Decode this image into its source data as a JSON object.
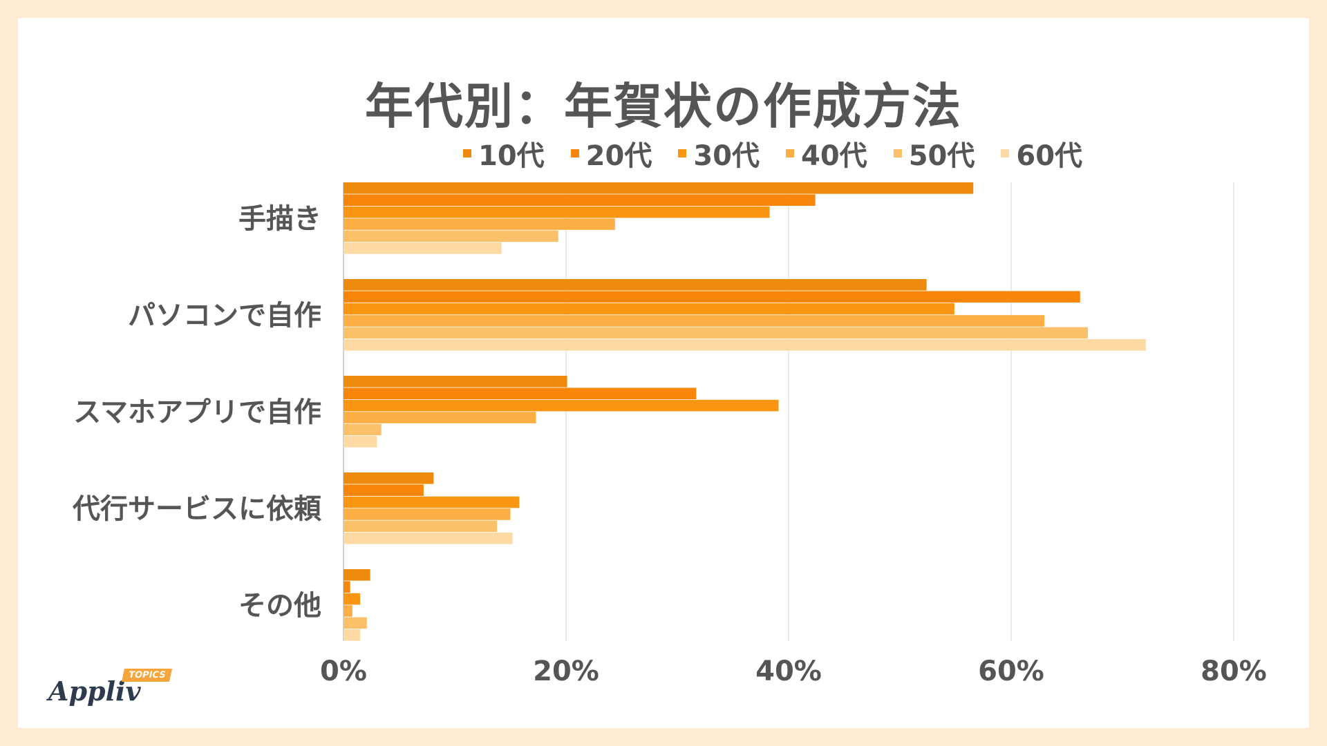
{
  "title": "年代別：年賀状の作成方法",
  "logo": {
    "name": "Appliv",
    "tag": "TOPICS"
  },
  "colors": [
    "#ee8a0d",
    "#f7860b",
    "#fb9612",
    "#fdaf45",
    "#fdc06a",
    "#fdd9a3"
  ],
  "chart_data": {
    "type": "bar",
    "orientation": "horizontal",
    "categories": [
      "手描き",
      "パソコンで自作",
      "スマホアプリで自作",
      "代行サービスに依頼",
      "その他"
    ],
    "series": [
      {
        "name": "10代",
        "values": [
          56.6,
          52.4,
          20.1,
          8.1,
          2.4
        ]
      },
      {
        "name": "20代",
        "values": [
          42.4,
          66.2,
          31.7,
          7.2,
          0.6
        ]
      },
      {
        "name": "30代",
        "values": [
          38.3,
          54.9,
          39.1,
          15.8,
          1.5
        ]
      },
      {
        "name": "40代",
        "values": [
          24.4,
          63.0,
          17.3,
          15.0,
          0.8
        ]
      },
      {
        "name": "50代",
        "values": [
          19.3,
          66.9,
          3.4,
          13.8,
          2.1
        ]
      },
      {
        "name": "60代",
        "values": [
          14.2,
          72.1,
          3.0,
          15.2,
          1.5
        ]
      }
    ],
    "xlim": [
      0,
      80
    ],
    "xticks": [
      "0%",
      "20%",
      "40%",
      "60%",
      "80%"
    ],
    "xtick_values": [
      0,
      20,
      40,
      60,
      80
    ],
    "grid": true,
    "legend_position": "top"
  }
}
